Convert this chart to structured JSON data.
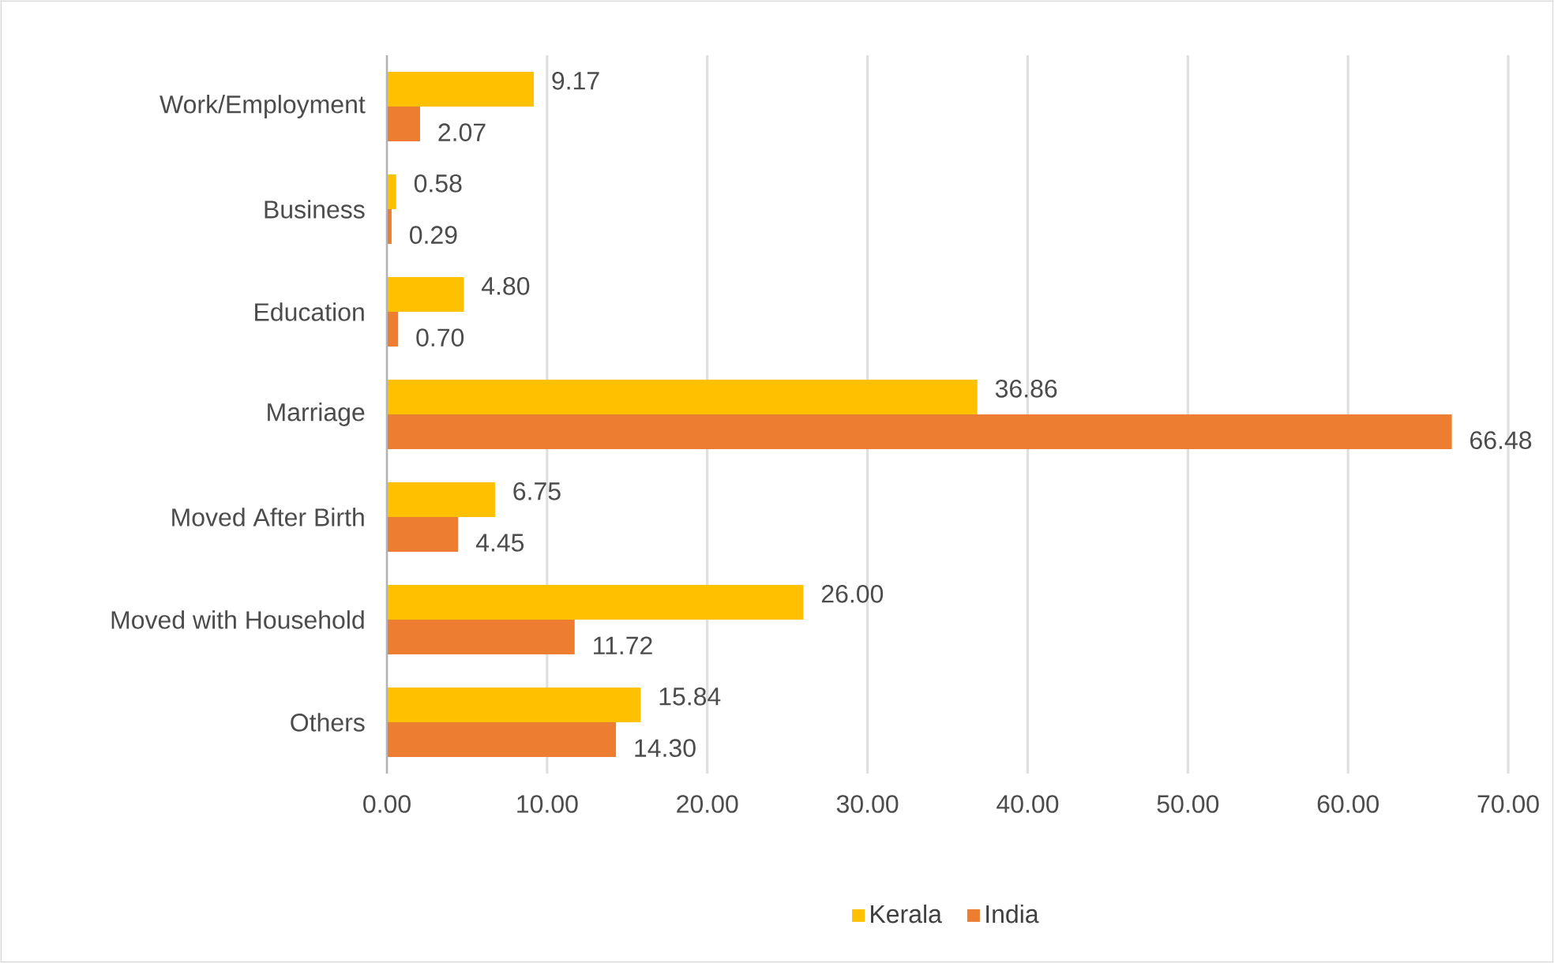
{
  "chart_data": {
    "type": "bar",
    "orientation": "horizontal",
    "categories": [
      "Work/Employment",
      "Business",
      "Education",
      "Marriage",
      "Moved After Birth",
      "Moved with Household",
      "Others"
    ],
    "series": [
      {
        "name": "Kerala",
        "color": "#ffc000",
        "values": [
          9.17,
          0.58,
          4.8,
          36.86,
          6.75,
          26.0,
          15.84
        ],
        "value_labels": [
          "9.17",
          "0.58",
          "4.80",
          "36.86",
          "6.75",
          "26.00",
          "15.84"
        ]
      },
      {
        "name": "India",
        "color": "#ed7d31",
        "values": [
          2.07,
          0.29,
          0.7,
          66.48,
          4.45,
          11.72,
          14.3
        ],
        "value_labels": [
          "2.07",
          "0.29",
          "0.70",
          "66.48",
          "4.45",
          "11.72",
          "14.30"
        ]
      }
    ],
    "xlim": [
      0,
      70
    ],
    "xticks": [
      {
        "value": 0,
        "label": "0.00"
      },
      {
        "value": 10,
        "label": "10.00"
      },
      {
        "value": 20,
        "label": "20.00"
      },
      {
        "value": 30,
        "label": "30.00"
      },
      {
        "value": 40,
        "label": "40.00"
      },
      {
        "value": 50,
        "label": "50.00"
      },
      {
        "value": 60,
        "label": "60.00"
      },
      {
        "value": 70,
        "label": "70.00"
      }
    ],
    "grid": "x",
    "legend": "bottom"
  }
}
